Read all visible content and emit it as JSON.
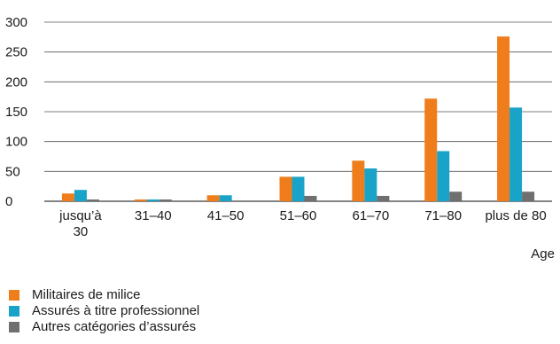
{
  "chart_data": {
    "type": "bar",
    "title": "",
    "xlabel": "Age",
    "ylabel": "",
    "ylim": [
      0,
      300
    ],
    "yticks": [
      0,
      50,
      100,
      150,
      200,
      250,
      300
    ],
    "grid": true,
    "legend_position": "bottom-left",
    "categories": [
      [
        "jusqu’à",
        "30"
      ],
      [
        "31–40"
      ],
      [
        "41–50"
      ],
      [
        "51–60"
      ],
      [
        "61–70"
      ],
      [
        "71–80"
      ],
      [
        "plus de 80"
      ]
    ],
    "series": [
      {
        "name": "Militaires de milice",
        "color": "#f07d1c",
        "values": [
          13,
          3,
          10,
          41,
          68,
          172,
          276
        ]
      },
      {
        "name": "Assurés à titre professionnel",
        "color": "#1aa3c8",
        "values": [
          19,
          3,
          10,
          41,
          55,
          84,
          157
        ]
      },
      {
        "name": "Autres catégories d’assurés",
        "color": "#6f6f6f",
        "values": [
          3,
          3,
          0,
          9,
          9,
          16,
          16
        ]
      }
    ]
  }
}
